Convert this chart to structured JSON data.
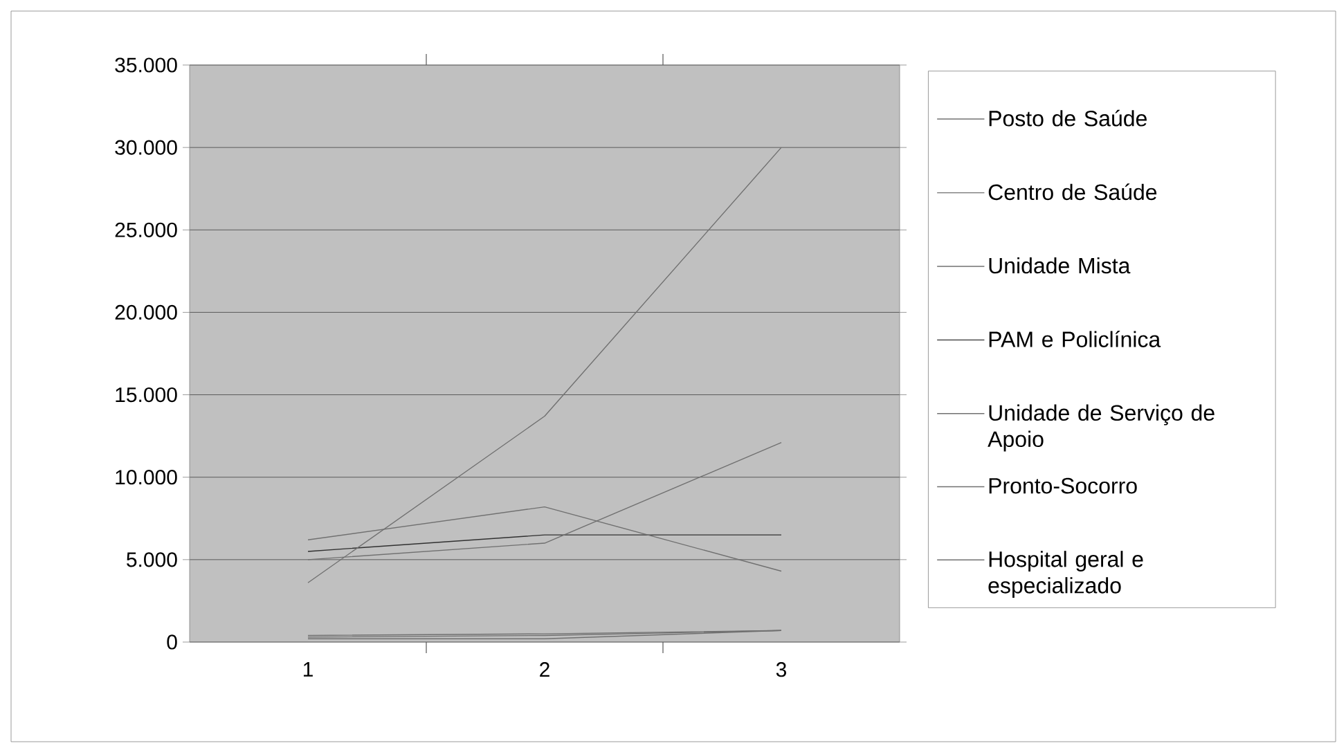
{
  "chart_data": {
    "type": "line",
    "categories": [
      "1",
      "2",
      "3"
    ],
    "series": [
      {
        "name": "Posto de Saúde",
        "color": "#707070",
        "values": [
          3600,
          13700,
          30000
        ]
      },
      {
        "name": "Centro de Saúde",
        "color": "#707070",
        "values": [
          5000,
          6000,
          12100
        ]
      },
      {
        "name": "Unidade Mista",
        "color": "#707070",
        "values": [
          6200,
          8200,
          4300
        ]
      },
      {
        "name": "PAM e Policlínica",
        "color": "#303030",
        "values": [
          5500,
          6500,
          6500
        ]
      },
      {
        "name": "Unidade de Serviço de Apoio",
        "color": "#707070",
        "values": [
          400,
          500,
          700
        ]
      },
      {
        "name": "Pronto-Socorro",
        "color": "#707070",
        "values": [
          200,
          200,
          700
        ]
      },
      {
        "name": "Hospital geral e especializado",
        "color": "#707070",
        "values": [
          300,
          400,
          700
        ]
      }
    ],
    "ylim": [
      0,
      35000
    ],
    "yticks": [
      {
        "value": 0,
        "label": "0"
      },
      {
        "value": 5000,
        "label": "5.000"
      },
      {
        "value": 10000,
        "label": "10.000"
      },
      {
        "value": 15000,
        "label": "15.000"
      },
      {
        "value": 20000,
        "label": "20.000"
      },
      {
        "value": 25000,
        "label": "25.000"
      },
      {
        "value": 30000,
        "label": "30.000"
      },
      {
        "value": 35000,
        "label": "35.000"
      }
    ],
    "grid": "y",
    "legend": "right",
    "marker": "none",
    "line_style": "solid"
  }
}
